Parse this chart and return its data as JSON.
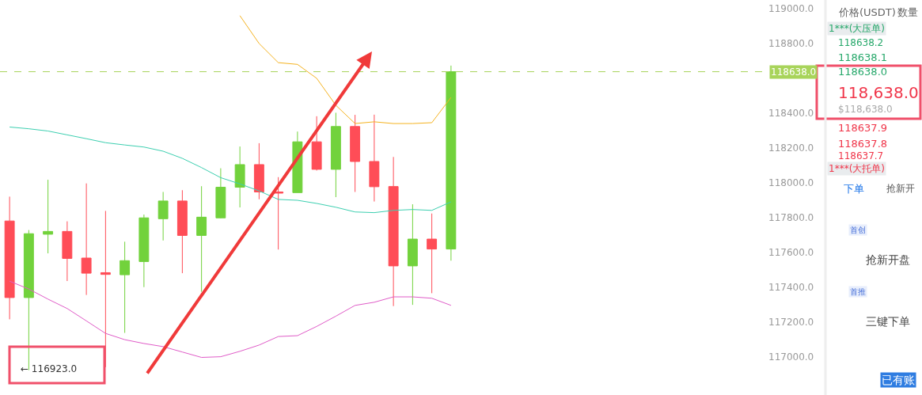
{
  "chart_data": {
    "type": "candlestick",
    "categories": [
      null,
      null,
      null,
      null,
      null,
      null,
      null,
      null,
      null,
      null,
      null,
      null,
      null,
      null,
      null,
      null,
      null,
      null,
      null,
      null,
      null,
      null,
      null,
      null,
      null,
      null,
      null,
      null,
      null,
      null,
      null,
      null,
      null,
      null,
      null,
      null,
      null,
      null,
      null,
      null
    ],
    "ohlc": [
      [
        117780,
        117920,
        117215,
        117340
      ],
      [
        117340,
        117728,
        116923,
        117707
      ],
      [
        117704,
        118017,
        117594,
        117720
      ],
      [
        117720,
        117778,
        117435,
        117565
      ],
      [
        117567,
        117996,
        117355,
        117480
      ],
      [
        117483,
        117838,
        116940,
        117473
      ],
      [
        117471,
        117661,
        117137,
        117552
      ],
      [
        117547,
        117817,
        117400,
        117798
      ],
      [
        117793,
        117947,
        117668,
        117895
      ],
      [
        117895,
        117957,
        117480,
        117697
      ],
      [
        117697,
        117980,
        117373,
        117802
      ],
      [
        117798,
        118083,
        117795,
        117974
      ],
      [
        117974,
        118208,
        117858,
        118104
      ],
      [
        118104,
        118227,
        117905,
        117947
      ],
      [
        117947,
        118032,
        117616,
        117940
      ],
      [
        117943,
        118294,
        117943,
        118235
      ],
      [
        118235,
        118382,
        118070,
        118077
      ],
      [
        118077,
        118402,
        117917,
        118323
      ],
      [
        118323,
        118390,
        117947,
        118122
      ],
      [
        118122,
        118391,
        117892,
        117977
      ],
      [
        117978,
        118148,
        117291,
        117522
      ],
      [
        117522,
        117876,
        117298,
        117676
      ],
      [
        117676,
        117823,
        117365,
        117619
      ],
      [
        117619,
        118673,
        117552,
        118638
      ],
      null,
      null,
      null,
      null,
      null,
      null,
      null,
      null,
      null,
      null,
      null,
      null,
      null,
      null,
      null,
      null
    ],
    "colors": [
      "#ff4d57",
      "#72d23c",
      "#72d23c",
      "#ff4d57",
      "#ff4d57",
      "#ff4d57",
      "#72d23c",
      "#72d23c",
      "#72d23c",
      "#ff4d57",
      "#72d23c",
      "#72d23c",
      "#72d23c",
      "#ff4d57",
      "#ff4d57",
      "#72d23c",
      "#ff4d57",
      "#72d23c",
      "#ff4d57",
      "#ff4d57",
      "#ff4d57",
      "#72d23c",
      "#ff4d57",
      "#72d23c",
      null,
      null,
      null,
      null,
      null,
      null,
      null,
      null,
      null,
      null,
      null,
      null,
      null,
      null,
      null,
      null
    ],
    "series": [
      {
        "type": "line",
        "color": "#f5b321",
        "values": [
          null,
          null,
          null,
          null,
          null,
          null,
          null,
          null,
          null,
          null,
          null,
          null,
          118960,
          118800,
          118690,
          118680,
          118600,
          118445,
          118340,
          118350,
          118340,
          118340,
          118345,
          118490,
          null,
          null,
          null,
          null,
          null,
          null,
          null,
          null,
          null,
          null,
          null,
          null,
          null,
          null,
          null,
          null
        ]
      },
      {
        "type": "line",
        "color": "#3ccfb0",
        "values": [
          118320,
          118310,
          118297,
          118275,
          118253,
          118230,
          118217,
          118205,
          118181,
          118140,
          118087,
          118029,
          117993,
          117953,
          117904,
          117899,
          117881,
          117859,
          117832,
          117828,
          117841,
          117846,
          117841,
          117890,
          null,
          null,
          null,
          null,
          null,
          null,
          null,
          null,
          null,
          null,
          null,
          null,
          null,
          null,
          null,
          null
        ]
      },
      {
        "type": "line",
        "color": "#e05cc8",
        "values": [
          117434,
          117389,
          117331,
          117277,
          117206,
          117134,
          117098,
          117076,
          117058,
          117027,
          116996,
          117000,
          117031,
          117067,
          117116,
          117121,
          117174,
          117233,
          117295,
          117313,
          117344,
          117344,
          117336,
          117295,
          null,
          null,
          null,
          null,
          null,
          null,
          null,
          null,
          null,
          null,
          null,
          null,
          null,
          null,
          null,
          null
        ]
      }
    ],
    "ylim": [
      116780,
      119050
    ],
    "yticks": [
      {
        "value": 117000,
        "label": "117000.0"
      },
      {
        "value": 117200,
        "label": "117200.0"
      },
      {
        "value": 117400,
        "label": "117400.0"
      },
      {
        "value": 117600,
        "label": "117600.0"
      },
      {
        "value": 117800,
        "label": "117800.0"
      },
      {
        "value": 118000,
        "label": "118000.0"
      },
      {
        "value": 118200,
        "label": "118200.0"
      },
      {
        "value": 118400,
        "label": "118400.0"
      },
      {
        "value": 118800,
        "label": "118800.0"
      },
      {
        "value": 119000,
        "label": "119000.0"
      }
    ],
    "ref_lines": [
      {
        "axis": "y",
        "value": 118638,
        "label": "118638.0",
        "color": "#a8d45a",
        "line_style": "dashed"
      }
    ],
    "annotations": [
      "← 116923.0",
      "价格(USDT)",
      "数量",
      "1***(大压单)",
      "118638.2",
      "118638.1",
      "118638.0",
      "118,638.0",
      "$118,638.0",
      "118637.9",
      "118637.8",
      "118637.7",
      "1***(大托单)",
      "下单",
      "抢新开",
      "首创",
      "抢新开盘",
      "首推",
      "三键下单",
      "已有账"
    ],
    "tick_labels": "y"
  }
}
